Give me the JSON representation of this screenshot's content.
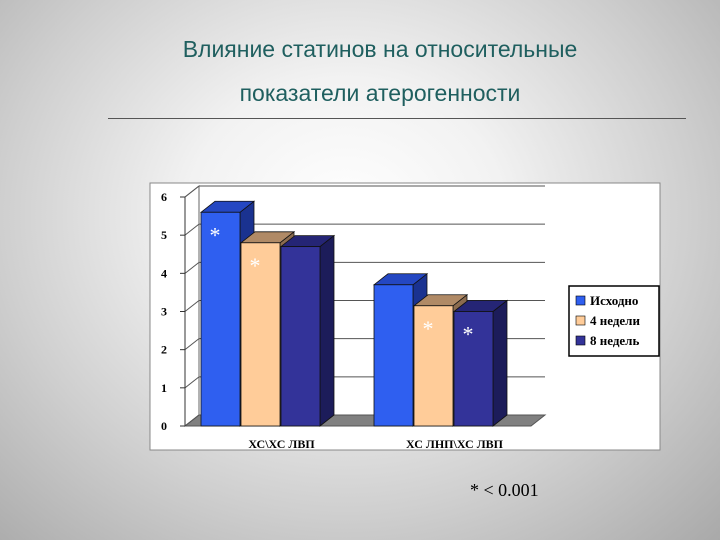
{
  "slide": {
    "title_line1": "Влияние статинов на относительные",
    "title_line2": "показатели атерогенности",
    "footnote": "* < 0.001"
  },
  "chart_data": {
    "type": "bar",
    "categories": [
      "ХС\\ХС ЛВП",
      "ХС ЛНП\\ХС  ЛВП"
    ],
    "series": [
      {
        "name": "Исходно",
        "values": [
          5.6,
          3.7
        ],
        "color": "#2f5ff0",
        "color_top": "#2447c2",
        "color_side": "#1a3290",
        "marks": [
          true,
          false
        ]
      },
      {
        "name": "4 недели",
        "values": [
          4.8,
          3.15
        ],
        "color": "#ffcc99",
        "color_top": "#b08a66",
        "color_side": "#8c6c4f",
        "marks": [
          true,
          true
        ]
      },
      {
        "name": "8 недель",
        "values": [
          4.7,
          3.0
        ],
        "color": "#333399",
        "color_top": "#252575",
        "color_side": "#1c1c5a",
        "marks": [
          false,
          true
        ]
      }
    ],
    "ylim": [
      0,
      6
    ],
    "yticks": [
      "0",
      "1",
      "2",
      "3",
      "4",
      "5",
      "6"
    ],
    "grid": true,
    "legend": "right",
    "mark_symbol": "*"
  }
}
